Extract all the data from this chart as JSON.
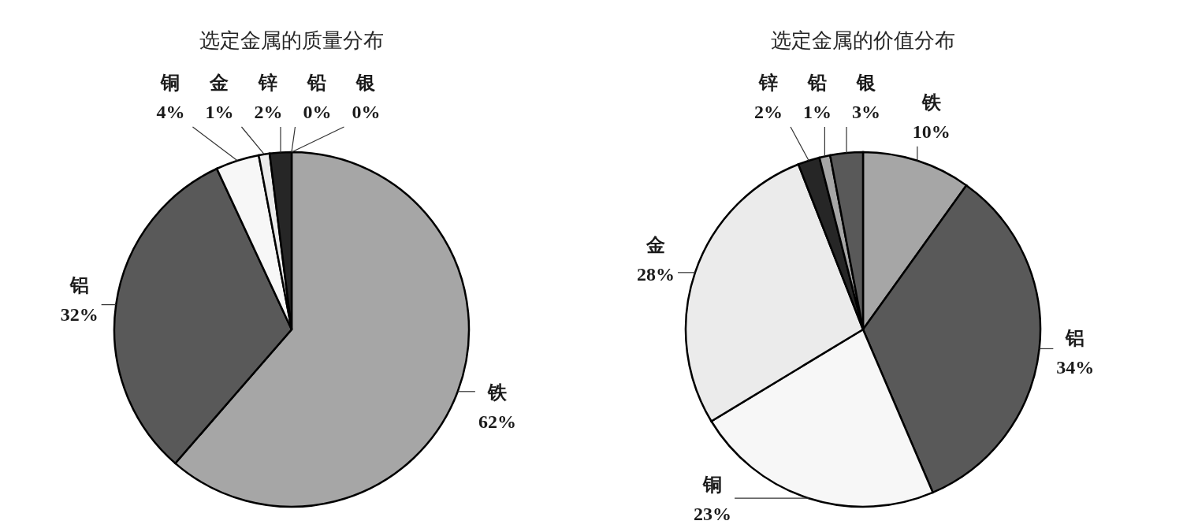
{
  "chart_data": [
    {
      "type": "pie",
      "title": "选定金属的质量分布",
      "categories": [
        "铁",
        "铝",
        "铜",
        "金",
        "锌",
        "铅",
        "银"
      ],
      "values": [
        62,
        32,
        4,
        1,
        2,
        0,
        0
      ],
      "value_labels": [
        "62%",
        "32%",
        "4%",
        "1%",
        "2%",
        "0%",
        "0%"
      ],
      "colors": [
        "#a6a6a6",
        "#595959",
        "#f7f7f7",
        "#ebebeb",
        "#262626",
        "#a6a6a6",
        "#595959"
      ]
    },
    {
      "type": "pie",
      "title": "选定金属的价值分布",
      "categories": [
        "铁",
        "铝",
        "铜",
        "金",
        "锌",
        "铅",
        "银"
      ],
      "values": [
        10,
        34,
        23,
        28,
        2,
        1,
        3
      ],
      "value_labels": [
        "10%",
        "34%",
        "23%",
        "28%",
        "2%",
        "1%",
        "3%"
      ],
      "colors": [
        "#a6a6a6",
        "#595959",
        "#f7f7f7",
        "#ebebeb",
        "#262626",
        "#a6a6a6",
        "#595959"
      ]
    }
  ]
}
